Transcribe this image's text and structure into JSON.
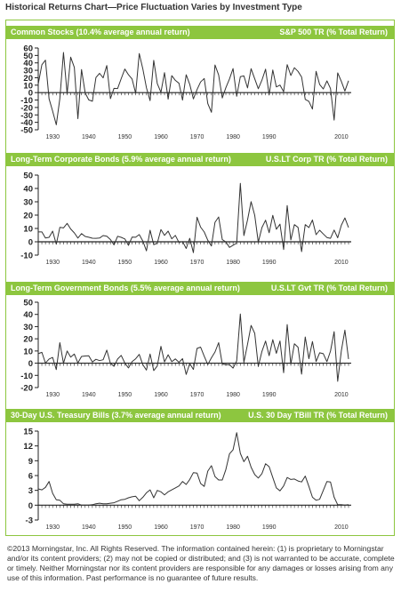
{
  "title": "Historical Returns Chart—Price Fluctuation Varies by Investment Type",
  "colors": {
    "accent": "#8dc63f",
    "line": "#333333",
    "axis": "#222222"
  },
  "footer": "©2013 Morningstar, Inc. All Rights Reserved. The information contained herein: (1) is proprietary to Morningstar and/or its content providers; (2) may not be copied or distributed; and (3) is not warranted to be accurate, complete or timely. Neither Morningstar nor its content providers are responsible for any damages or losses arising from any use of this information. Past performance is no guarantee of future results.",
  "chart_data": [
    {
      "type": "line",
      "header_left": "Common Stocks (10.4% average annual return)",
      "header_right": "S&P 500 TR (% Total Return)",
      "xlim": [
        1926,
        2012
      ],
      "ylim": [
        -50,
        60
      ],
      "yticks": [
        -50,
        -40,
        -30,
        -20,
        -10,
        0,
        10,
        20,
        30,
        40,
        50,
        60
      ],
      "xticks": [
        1930,
        1940,
        1950,
        1960,
        1970,
        1980,
        1990,
        2010
      ],
      "series": [
        {
          "name": "",
          "x": [
            1926,
            1927,
            1928,
            1929,
            1930,
            1931,
            1932,
            1933,
            1934,
            1935,
            1936,
            1937,
            1938,
            1939,
            1940,
            1941,
            1942,
            1943,
            1944,
            1945,
            1946,
            1947,
            1948,
            1949,
            1950,
            1951,
            1952,
            1953,
            1954,
            1955,
            1956,
            1957,
            1958,
            1959,
            1960,
            1961,
            1962,
            1963,
            1964,
            1965,
            1966,
            1967,
            1968,
            1969,
            1970,
            1971,
            1972,
            1973,
            1974,
            1975,
            1976,
            1977,
            1978,
            1979,
            1980,
            1981,
            1982,
            1983,
            1984,
            1985,
            1986,
            1987,
            1988,
            1989,
            1990,
            1991,
            1992,
            1993,
            1994,
            1995,
            1996,
            1997,
            1998,
            1999,
            2000,
            2001,
            2002,
            2003,
            2004,
            2005,
            2006,
            2007,
            2008,
            2009,
            2010,
            2011,
            2012
          ],
          "y": [
            11.6,
            37.5,
            43.6,
            -8.4,
            -24.9,
            -43.3,
            -8.2,
            54.0,
            -1.4,
            47.7,
            33.9,
            -35.0,
            31.1,
            -0.4,
            -9.8,
            -11.6,
            20.3,
            25.9,
            19.8,
            36.4,
            -8.1,
            5.7,
            5.5,
            18.8,
            31.7,
            24.0,
            18.4,
            -1.0,
            52.6,
            31.6,
            6.6,
            -10.8,
            43.4,
            12.0,
            0.5,
            26.9,
            -8.7,
            22.8,
            16.5,
            12.5,
            -10.1,
            24.0,
            11.1,
            -8.5,
            4.0,
            14.3,
            19.0,
            -14.7,
            -26.5,
            37.2,
            23.8,
            -7.2,
            6.6,
            18.4,
            32.4,
            -4.9,
            21.4,
            22.5,
            6.3,
            32.2,
            18.5,
            5.2,
            16.8,
            31.5,
            -3.1,
            30.5,
            7.6,
            10.1,
            1.3,
            37.6,
            23.0,
            33.4,
            28.6,
            21.0,
            -9.1,
            -11.9,
            -22.1,
            28.7,
            10.9,
            4.9,
            15.8,
            5.5,
            -37.0,
            26.5,
            15.1,
            2.1,
            16.0
          ]
        }
      ]
    },
    {
      "type": "line",
      "header_left": "Long-Term Corporate Bonds (5.9% average annual return)",
      "header_right": "U.S.LT Corp TR (% Total Return)",
      "xlim": [
        1926,
        2012
      ],
      "ylim": [
        -10,
        50
      ],
      "yticks": [
        -10,
        0,
        10,
        20,
        30,
        40,
        50
      ],
      "xticks": [
        1930,
        1940,
        1950,
        1960,
        1970,
        1980,
        1990,
        2010
      ],
      "series": [
        {
          "name": "",
          "x": [
            1926,
            1927,
            1928,
            1929,
            1930,
            1931,
            1932,
            1933,
            1934,
            1935,
            1936,
            1937,
            1938,
            1939,
            1940,
            1941,
            1942,
            1943,
            1944,
            1945,
            1946,
            1947,
            1948,
            1949,
            1950,
            1951,
            1952,
            1953,
            1954,
            1955,
            1956,
            1957,
            1958,
            1959,
            1960,
            1961,
            1962,
            1963,
            1964,
            1965,
            1966,
            1967,
            1968,
            1969,
            1970,
            1971,
            1972,
            1973,
            1974,
            1975,
            1976,
            1977,
            1978,
            1979,
            1980,
            1981,
            1982,
            1983,
            1984,
            1985,
            1986,
            1987,
            1988,
            1989,
            1990,
            1991,
            1992,
            1993,
            1994,
            1995,
            1996,
            1997,
            1998,
            1999,
            2000,
            2001,
            2002,
            2003,
            2004,
            2005,
            2006,
            2007,
            2008,
            2009,
            2010,
            2011,
            2012
          ],
          "y": [
            7.4,
            7.4,
            2.8,
            3.3,
            8.0,
            -1.9,
            10.8,
            10.4,
            13.8,
            9.6,
            6.7,
            2.8,
            6.1,
            4.0,
            3.4,
            2.7,
            2.6,
            2.8,
            4.7,
            4.1,
            1.7,
            -2.3,
            4.1,
            3.3,
            2.1,
            -2.7,
            3.5,
            3.4,
            5.4,
            0.5,
            -6.8,
            8.7,
            -2.2,
            -1.0,
            9.1,
            4.8,
            8.0,
            2.2,
            4.8,
            -0.5,
            0.2,
            -5.0,
            2.6,
            -8.1,
            18.4,
            11.0,
            7.3,
            1.1,
            -3.1,
            14.6,
            18.6,
            1.7,
            -0.1,
            -4.2,
            -2.6,
            -1.0,
            43.8,
            4.7,
            16.4,
            30.1,
            19.8,
            -0.3,
            10.7,
            16.2,
            6.8,
            19.9,
            9.4,
            13.2,
            -5.8,
            27.2,
            1.4,
            12.9,
            10.8,
            -7.4,
            12.9,
            10.7,
            16.3,
            5.3,
            8.7,
            5.9,
            3.2,
            2.6,
            8.8,
            3.0,
            12.4,
            17.9,
            10.7
          ]
        }
      ]
    },
    {
      "type": "line",
      "header_left": "Long-Term Government Bonds (5.5% average annual return)",
      "header_right": "U.S.LT Gvt TR (% Total Return)",
      "xlim": [
        1926,
        2012
      ],
      "ylim": [
        -20,
        50
      ],
      "yticks": [
        -20,
        -10,
        0,
        10,
        20,
        30,
        40,
        50
      ],
      "xticks": [
        1930,
        1940,
        1950,
        1960,
        1970,
        1980,
        1990,
        2010
      ],
      "series": [
        {
          "name": "",
          "x": [
            1926,
            1927,
            1928,
            1929,
            1930,
            1931,
            1932,
            1933,
            1934,
            1935,
            1936,
            1937,
            1938,
            1939,
            1940,
            1941,
            1942,
            1943,
            1944,
            1945,
            1946,
            1947,
            1948,
            1949,
            1950,
            1951,
            1952,
            1953,
            1954,
            1955,
            1956,
            1957,
            1958,
            1959,
            1960,
            1961,
            1962,
            1963,
            1964,
            1965,
            1966,
            1967,
            1968,
            1969,
            1970,
            1971,
            1972,
            1973,
            1974,
            1975,
            1976,
            1977,
            1978,
            1979,
            1980,
            1981,
            1982,
            1983,
            1984,
            1985,
            1986,
            1987,
            1988,
            1989,
            1990,
            1991,
            1992,
            1993,
            1994,
            1995,
            1996,
            1997,
            1998,
            1999,
            2000,
            2001,
            2002,
            2003,
            2004,
            2005,
            2006,
            2007,
            2008,
            2009,
            2010,
            2011,
            2012
          ],
          "y": [
            7.8,
            8.9,
            0.1,
            3.4,
            4.7,
            -5.3,
            16.8,
            -0.1,
            10.0,
            5.0,
            7.5,
            0.2,
            5.5,
            5.9,
            6.1,
            0.9,
            3.2,
            2.1,
            2.8,
            10.7,
            -0.1,
            -2.6,
            3.4,
            6.4,
            0.1,
            -3.9,
            1.2,
            3.6,
            7.2,
            -1.3,
            -5.6,
            7.5,
            -6.1,
            -2.3,
            13.8,
            1.0,
            6.9,
            1.2,
            3.5,
            0.7,
            3.7,
            -9.2,
            -0.3,
            -5.1,
            12.1,
            13.2,
            5.7,
            -1.1,
            4.4,
            9.2,
            16.8,
            -0.7,
            -1.2,
            -1.2,
            -4.0,
            1.9,
            40.4,
            0.7,
            15.5,
            31.0,
            24.5,
            -2.7,
            9.7,
            18.1,
            6.2,
            19.3,
            8.1,
            18.2,
            -7.8,
            31.7,
            -0.9,
            15.9,
            13.1,
            -9.0,
            21.5,
            3.7,
            17.8,
            1.4,
            8.5,
            7.8,
            1.2,
            9.9,
            25.9,
            -14.9,
            10.1,
            27.1,
            3.4
          ]
        }
      ]
    },
    {
      "type": "line",
      "header_left": "30-Day U.S. Treasury Bills (3.7% average annual return)",
      "header_right": "U.S. 30 Day TBill TR (% Total Return)",
      "xlim": [
        1926,
        2012
      ],
      "ylim": [
        -3,
        15
      ],
      "yticks": [
        -3,
        0,
        3,
        6,
        9,
        12,
        15
      ],
      "xticks": [
        1930,
        1940,
        1950,
        1960,
        1970,
        1980,
        1990,
        2010
      ],
      "series": [
        {
          "name": "",
          "x": [
            1926,
            1927,
            1928,
            1929,
            1930,
            1931,
            1932,
            1933,
            1934,
            1935,
            1936,
            1937,
            1938,
            1939,
            1940,
            1941,
            1942,
            1943,
            1944,
            1945,
            1946,
            1947,
            1948,
            1949,
            1950,
            1951,
            1952,
            1953,
            1954,
            1955,
            1956,
            1957,
            1958,
            1959,
            1960,
            1961,
            1962,
            1963,
            1964,
            1965,
            1966,
            1967,
            1968,
            1969,
            1970,
            1971,
            1972,
            1973,
            1974,
            1975,
            1976,
            1977,
            1978,
            1979,
            1980,
            1981,
            1982,
            1983,
            1984,
            1985,
            1986,
            1987,
            1988,
            1989,
            1990,
            1991,
            1992,
            1993,
            1994,
            1995,
            1996,
            1997,
            1998,
            1999,
            2000,
            2001,
            2002,
            2003,
            2004,
            2005,
            2006,
            2007,
            2008,
            2009,
            2010,
            2011,
            2012
          ],
          "y": [
            3.3,
            3.1,
            3.6,
            4.8,
            2.4,
            1.1,
            1.0,
            0.3,
            0.2,
            0.2,
            0.2,
            0.3,
            0.0,
            0.0,
            0.0,
            0.1,
            0.3,
            0.4,
            0.3,
            0.3,
            0.4,
            0.5,
            0.8,
            1.1,
            1.2,
            1.5,
            1.7,
            1.8,
            0.9,
            1.6,
            2.5,
            3.1,
            1.5,
            3.0,
            2.7,
            2.1,
            2.7,
            3.1,
            3.5,
            3.9,
            4.8,
            4.2,
            5.2,
            6.6,
            6.5,
            4.4,
            3.8,
            6.9,
            8.0,
            5.8,
            5.1,
            5.1,
            7.2,
            10.4,
            11.2,
            14.7,
            10.5,
            8.8,
            9.9,
            7.7,
            6.2,
            5.5,
            6.4,
            8.4,
            7.8,
            5.6,
            3.5,
            2.9,
            3.9,
            5.6,
            5.2,
            5.3,
            4.9,
            4.7,
            5.9,
            3.8,
            1.6,
            1.0,
            1.2,
            3.0,
            4.8,
            4.7,
            1.6,
            0.1,
            0.1,
            0.0,
            0.1
          ]
        }
      ]
    }
  ]
}
